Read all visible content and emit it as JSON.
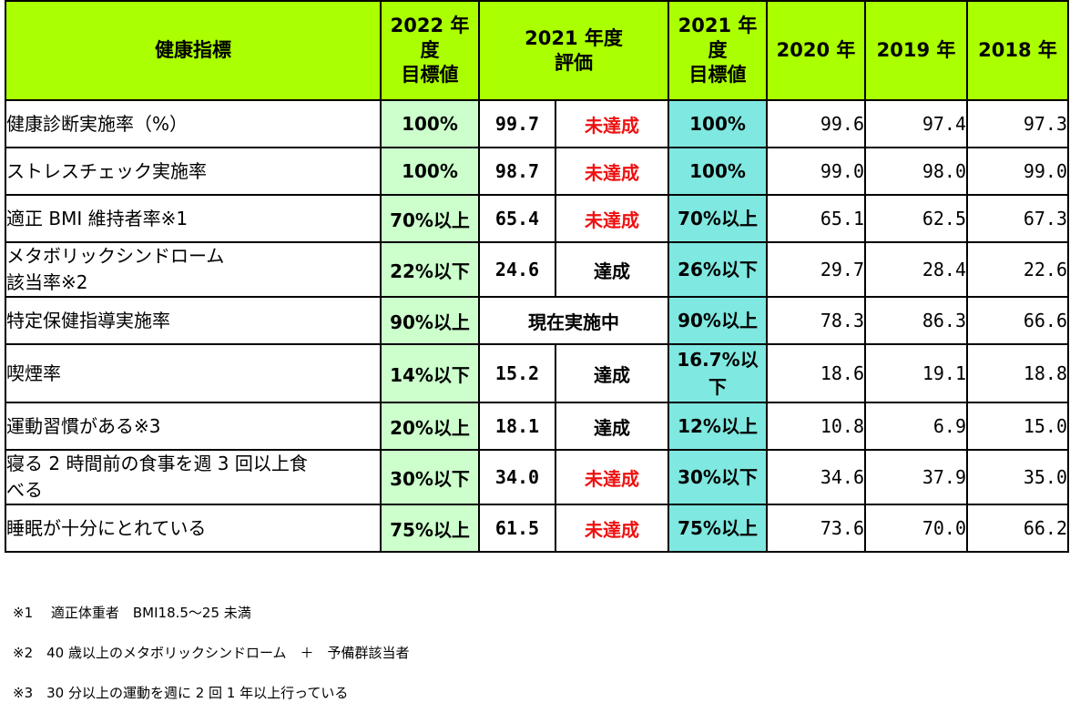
{
  "header": {
    "item": "健康指標",
    "target_2022": [
      "2022 年",
      "度",
      "目標値"
    ],
    "eval_2021": [
      "2021 年度",
      "評価"
    ],
    "target_2021": [
      "2021 年",
      "度",
      "目標値"
    ],
    "y2020": "2020 年",
    "y2019": "2019 年",
    "y2018": "2018 年"
  },
  "rows": [
    {
      "label": [
        "健康診断実施率（%）"
      ],
      "target_2022": "100%",
      "val_2021": "99.7",
      "eval_2021": "未達成",
      "target_2021": [
        "100%"
      ],
      "y2020": "99.6",
      "y2019": "97.4",
      "y2018": "97.3"
    },
    {
      "label": [
        "ストレスチェック実施率"
      ],
      "target_2022": "100%",
      "val_2021": "98.7",
      "eval_2021": "未達成",
      "target_2021": [
        "100%"
      ],
      "y2020": "99.0",
      "y2019": "98.0",
      "y2018": "99.0"
    },
    {
      "label": [
        "適正 BMI 維持者率※1"
      ],
      "target_2022": "70%以上",
      "val_2021": "65.4",
      "eval_2021": "未達成",
      "target_2021": [
        "70%以上"
      ],
      "y2020": "65.1",
      "y2019": "62.5",
      "y2018": "67.3"
    },
    {
      "label": [
        "メタボリックシンドローム",
        "該当率※2"
      ],
      "target_2022": "22%以下",
      "val_2021": "24.6",
      "eval_2021": "達成",
      "target_2021": [
        "26%以下"
      ],
      "y2020": "29.7",
      "y2019": "28.4",
      "y2018": "22.6"
    },
    {
      "label": [
        "特定保健指導実施率"
      ],
      "target_2022": "90%以上",
      "status_2021": "現在実施中",
      "target_2021": [
        "90%以上"
      ],
      "y2020": "78.3",
      "y2019": "86.3",
      "y2018": "66.6"
    },
    {
      "label": [
        "喫煙率"
      ],
      "target_2022": "14%以下",
      "val_2021": "15.2",
      "eval_2021": "達成",
      "target_2021": [
        "16.7%以",
        "下"
      ],
      "y2020": "18.6",
      "y2019": "19.1",
      "y2018": "18.8"
    },
    {
      "label": [
        "運動習慣がある※3"
      ],
      "target_2022": "20%以上",
      "val_2021": "18.1",
      "eval_2021": "達成",
      "target_2021": [
        "12%以上"
      ],
      "y2020": "10.8",
      "y2019": "6.9",
      "y2018": "15.0"
    },
    {
      "label": [
        "寝る 2 時間前の食事を週 3 回以上食",
        "べる"
      ],
      "target_2022": "30%以下",
      "val_2021": "34.0",
      "eval_2021": "未達成",
      "target_2021": [
        "30%以下"
      ],
      "y2020": "34.6",
      "y2019": "37.9",
      "y2018": "35.0"
    },
    {
      "label": [
        "睡眠が十分にとれている"
      ],
      "target_2022": "75%以上",
      "val_2021": "61.5",
      "eval_2021": "未達成",
      "target_2021": [
        "75%以上"
      ],
      "y2020": "73.6",
      "y2019": "70.0",
      "y2018": "66.2"
    }
  ],
  "notes": [
    "※1　 適正体重者　BMI18.5～25 未満",
    "※2　40 歳以上のメタボリックシンドローム　＋　予備群該当者",
    "※3　30 分以上の運動を週に 2 回 1 年以上行っている"
  ],
  "colors": {
    "header": "#aaff00",
    "target_2022_bg": "#ccffcc",
    "target_2021_bg": "#7fe8e0",
    "unachieved_text": "#ee1111"
  }
}
